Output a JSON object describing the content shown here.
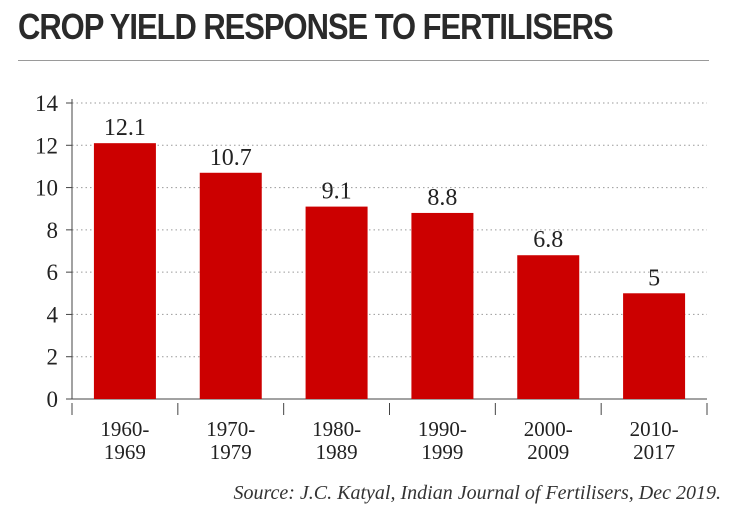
{
  "title": "CROP YIELD RESPONSE TO FERTILISERS",
  "source": "Source: J.C. Katyal, Indian Journal of Fertilisers, Dec 2019.",
  "colors": {
    "bar": "#cc0000",
    "grid": "#9a9a9a",
    "axis": "#444444",
    "text": "#222222"
  },
  "chart_data": {
    "type": "bar",
    "categories": [
      [
        "1960-",
        "1969"
      ],
      [
        "1970-",
        "1979"
      ],
      [
        "1980-",
        "1989"
      ],
      [
        "1990-",
        "1999"
      ],
      [
        "2000-",
        "2009"
      ],
      [
        "2010-",
        "2017"
      ]
    ],
    "values": [
      12.1,
      10.7,
      9.1,
      8.8,
      6.8,
      5
    ],
    "value_labels": [
      "12.1",
      "10.7",
      "9.1",
      "8.8",
      "6.8",
      "5"
    ],
    "yticks": [
      0,
      2,
      4,
      6,
      8,
      10,
      12,
      14
    ],
    "ylim": [
      0,
      14
    ],
    "grid": "dotted horizontal",
    "xlabel": "",
    "ylabel": ""
  }
}
